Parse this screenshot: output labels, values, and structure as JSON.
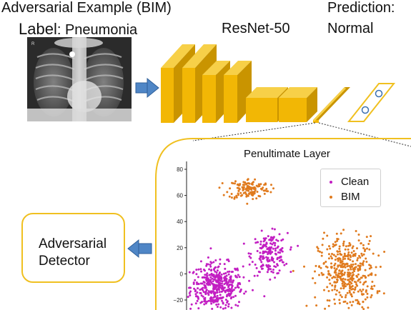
{
  "header": {
    "title": "Adversarial Example (BIM)",
    "label_prefix": "Label",
    "label_value": ": Pneumonia",
    "model_name": "ResNet-50",
    "prediction_heading": "Prediction:",
    "prediction_value": "Normal"
  },
  "detector": {
    "line1": "Adversarial",
    "line2": "Detector"
  },
  "xray": {
    "corner_mark": "R"
  },
  "colors": {
    "accent_yellow": "#f0c020",
    "layer_front": "#f2b705",
    "layer_top": "#f7d048",
    "layer_side": "#c99400",
    "arrow_blue": "#4f86c6",
    "clean": "#c21ec2",
    "bim": "#e07b1f"
  },
  "chart_data": {
    "type": "scatter",
    "title": "Penultimate Layer",
    "xlabel": "",
    "ylabel": "",
    "ylim": [
      -25,
      85
    ],
    "yticks": [
      "80",
      "60",
      "40",
      "20",
      "0",
      "−20"
    ],
    "legend_position": "top-right",
    "series": [
      {
        "name": "Clean",
        "clusters": [
          {
            "cx": 0,
            "cy": -10,
            "sx": 3.2,
            "sy": 9,
            "n": 420
          },
          {
            "cx": 13,
            "cy": 15,
            "sx": 2.2,
            "sy": 8,
            "n": 180
          }
        ]
      },
      {
        "name": "BIM",
        "clusters": [
          {
            "cx": 8,
            "cy": 65,
            "sx": 2.5,
            "sy": 4,
            "n": 140
          },
          {
            "cx": 32,
            "cy": 0,
            "sx": 3.5,
            "sy": 14,
            "n": 420
          }
        ]
      }
    ]
  }
}
